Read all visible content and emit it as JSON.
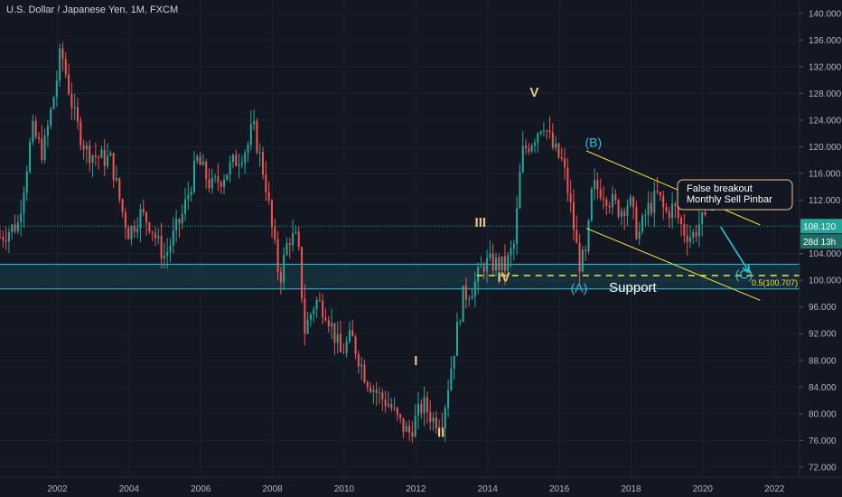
{
  "header": {
    "title": "U.S. Dollar / Japanese Yen, 1M, FXCM"
  },
  "chart_data": {
    "type": "candlestick",
    "xlim": [
      2000.4,
      2022.7
    ],
    "ylim": [
      70.5,
      142.0
    ],
    "x_ticks": [
      {
        "value": 2002,
        "label": "2002"
      },
      {
        "value": 2004,
        "label": "2004"
      },
      {
        "value": 2006,
        "label": "2006"
      },
      {
        "value": 2008,
        "label": "2008"
      },
      {
        "value": 2010,
        "label": "2010"
      },
      {
        "value": 2012,
        "label": "2012"
      },
      {
        "value": 2014,
        "label": "2014"
      },
      {
        "value": 2016,
        "label": "2016"
      },
      {
        "value": 2018,
        "label": "2018"
      },
      {
        "value": 2020,
        "label": "2020"
      },
      {
        "value": 2022,
        "label": "2022"
      }
    ],
    "y_ticks": [
      {
        "value": 140,
        "label": "140.000"
      },
      {
        "value": 136,
        "label": "136.000"
      },
      {
        "value": 132,
        "label": "132.000"
      },
      {
        "value": 128,
        "label": "128.000"
      },
      {
        "value": 124,
        "label": "124.000"
      },
      {
        "value": 120,
        "label": "120.000"
      },
      {
        "value": 116,
        "label": "116.000"
      },
      {
        "value": 112,
        "label": "112.000"
      },
      {
        "value": 104,
        "label": "104.000"
      },
      {
        "value": 100,
        "label": "100.000"
      },
      {
        "value": 96,
        "label": "96.000"
      },
      {
        "value": 92,
        "label": "92.000"
      },
      {
        "value": 88,
        "label": "88.000"
      },
      {
        "value": 84,
        "label": "84.000"
      },
      {
        "value": 80,
        "label": "80.000"
      },
      {
        "value": 76,
        "label": "76.000"
      },
      {
        "value": 72,
        "label": "72.000"
      }
    ],
    "colors": {
      "up": "#26a69a",
      "down": "#ef5350",
      "channel": "#f0e442",
      "cyan": "#26c6da",
      "wave": "#e8c787",
      "price_tag": "#26a69a",
      "support_zone": "#26c6da"
    },
    "price_line": {
      "value": 108.12,
      "label": "108.120",
      "countdown": "28d 13h"
    },
    "support_zone": {
      "from": 98.7,
      "to": 102.4,
      "label": "Support"
    },
    "fib_level": {
      "value": 100.707,
      "label": "0.5(100.707)",
      "x_from": 2013.7
    },
    "channel": {
      "upper": [
        [
          2016.75,
          119.4
        ],
        [
          2021.6,
          108.3
        ]
      ],
      "lower": [
        [
          2016.75,
          107.8
        ],
        [
          2021.6,
          97.0
        ]
      ]
    },
    "projection": [
      [
        2020.5,
        108.0
      ],
      [
        2021.3,
        101.2
      ]
    ],
    "annotation": {
      "lines": [
        "False breakout",
        "Monthly Sell Pinbar"
      ],
      "anchor": [
        2020.3,
        110.5
      ]
    },
    "wave_labels": [
      {
        "text": "I",
        "x": 2012.0,
        "y": 87.3,
        "style": "wave"
      },
      {
        "text": "II",
        "x": 2012.7,
        "y": 76.5,
        "style": "wave"
      },
      {
        "text": "III",
        "x": 2013.8,
        "y": 108.0,
        "style": "wave"
      },
      {
        "text": "IV",
        "x": 2014.45,
        "y": 99.8,
        "style": "wave"
      },
      {
        "text": "V",
        "x": 2015.3,
        "y": 127.5,
        "style": "wave"
      },
      {
        "text": "(A)",
        "x": 2016.55,
        "y": 98.2,
        "style": "cyan"
      },
      {
        "text": "(B)",
        "x": 2016.95,
        "y": 120.0,
        "style": "cyan"
      },
      {
        "text": "(C)",
        "x": 2021.15,
        "y": 100.2,
        "style": "cyan"
      }
    ],
    "anchors": [
      [
        2000.4,
        106.5
      ],
      [
        2000.9,
        108.5
      ],
      [
        2001.3,
        122.5
      ],
      [
        2001.6,
        119.0
      ],
      [
        2001.95,
        129.0
      ],
      [
        2002.1,
        134.5
      ],
      [
        2002.5,
        124.0
      ],
      [
        2002.8,
        119.5
      ],
      [
        2003.1,
        118.5
      ],
      [
        2003.5,
        118.0
      ],
      [
        2003.8,
        110.5
      ],
      [
        2004.0,
        107.0
      ],
      [
        2004.3,
        110.0
      ],
      [
        2004.6,
        108.5
      ],
      [
        2004.8,
        105.5
      ],
      [
        2005.0,
        103.5
      ],
      [
        2005.5,
        110.0
      ],
      [
        2005.9,
        118.0
      ],
      [
        2006.3,
        114.0
      ],
      [
        2006.6,
        115.5
      ],
      [
        2006.9,
        117.5
      ],
      [
        2007.3,
        120.0
      ],
      [
        2007.45,
        123.2
      ],
      [
        2007.8,
        115.0
      ],
      [
        2008.0,
        107.0
      ],
      [
        2008.2,
        100.0
      ],
      [
        2008.45,
        106.5
      ],
      [
        2008.7,
        106.0
      ],
      [
        2008.9,
        92.5
      ],
      [
        2009.2,
        97.0
      ],
      [
        2009.5,
        95.5
      ],
      [
        2009.9,
        89.0
      ],
      [
        2010.2,
        91.5
      ],
      [
        2010.6,
        85.5
      ],
      [
        2011.0,
        82.5
      ],
      [
        2011.25,
        81.5
      ],
      [
        2011.5,
        79.0
      ],
      [
        2011.8,
        77.0
      ],
      [
        2012.2,
        81.5
      ],
      [
        2012.5,
        79.0
      ],
      [
        2012.75,
        79.5
      ],
      [
        2012.95,
        86.0
      ],
      [
        2013.3,
        97.5
      ],
      [
        2013.6,
        99.0
      ],
      [
        2013.9,
        102.5
      ],
      [
        2014.2,
        102.5
      ],
      [
        2014.5,
        102.0
      ],
      [
        2014.75,
        105.5
      ],
      [
        2014.95,
        119.0
      ],
      [
        2015.3,
        121.5
      ],
      [
        2015.55,
        124.0
      ],
      [
        2015.8,
        120.0
      ],
      [
        2016.1,
        117.5
      ],
      [
        2016.3,
        111.5
      ],
      [
        2016.55,
        102.5
      ],
      [
        2016.75,
        103.5
      ],
      [
        2016.92,
        114.0
      ],
      [
        2017.2,
        113.5
      ],
      [
        2017.5,
        111.5
      ],
      [
        2017.7,
        110.5
      ],
      [
        2017.95,
        112.0
      ],
      [
        2018.2,
        106.5
      ],
      [
        2018.45,
        110.5
      ],
      [
        2018.75,
        112.8
      ],
      [
        2018.95,
        110.0
      ],
      [
        2019.2,
        111.0
      ],
      [
        2019.45,
        107.5
      ],
      [
        2019.7,
        106.5
      ],
      [
        2019.95,
        109.0
      ],
      [
        2020.1,
        108.1
      ]
    ]
  }
}
